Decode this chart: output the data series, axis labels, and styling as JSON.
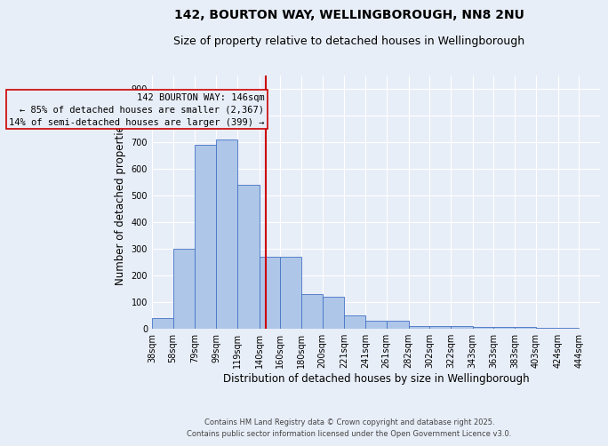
{
  "title_line1": "142, BOURTON WAY, WELLINGBOROUGH, NN8 2NU",
  "title_line2": "Size of property relative to detached houses in Wellingborough",
  "xlabel": "Distribution of detached houses by size in Wellingborough",
  "ylabel": "Number of detached properties",
  "annotation_text": "142 BOURTON WAY: 146sqm\n← 85% of detached houses are smaller (2,367)\n14% of semi-detached houses are larger (399) →",
  "property_size": 146,
  "bar_left_edges": [
    38,
    58,
    79,
    99,
    119,
    140,
    160,
    180,
    200,
    221,
    241,
    261,
    282,
    302,
    322,
    343,
    363,
    383,
    403,
    424
  ],
  "bar_widths": [
    20,
    21,
    20,
    20,
    21,
    20,
    20,
    20,
    21,
    20,
    20,
    21,
    20,
    20,
    21,
    20,
    20,
    20,
    21,
    20
  ],
  "bar_heights": [
    40,
    300,
    690,
    710,
    540,
    270,
    270,
    130,
    120,
    50,
    30,
    30,
    10,
    10,
    10,
    5,
    5,
    5,
    2,
    2
  ],
  "bar_color": "#aec6e8",
  "bar_edge_color": "#4472c4",
  "vline_color": "#cc0000",
  "annotation_box_color": "#cc0000",
  "background_color": "#e8eef8",
  "grid_color": "#ffffff",
  "ylim": [
    0,
    950
  ],
  "yticks": [
    0,
    100,
    200,
    300,
    400,
    500,
    600,
    700,
    800,
    900
  ],
  "tick_labels": [
    "38sqm",
    "58sqm",
    "79sqm",
    "99sqm",
    "119sqm",
    "140sqm",
    "160sqm",
    "180sqm",
    "200sqm",
    "221sqm",
    "241sqm",
    "261sqm",
    "282sqm",
    "302sqm",
    "322sqm",
    "343sqm",
    "363sqm",
    "383sqm",
    "403sqm",
    "424sqm",
    "444sqm"
  ],
  "footer_text": "Contains HM Land Registry data © Crown copyright and database right 2025.\nContains public sector information licensed under the Open Government Licence v3.0.",
  "title_fontsize": 10,
  "subtitle_fontsize": 9,
  "axis_label_fontsize": 8.5,
  "tick_fontsize": 7,
  "annotation_fontsize": 7.5,
  "footer_fontsize": 6
}
